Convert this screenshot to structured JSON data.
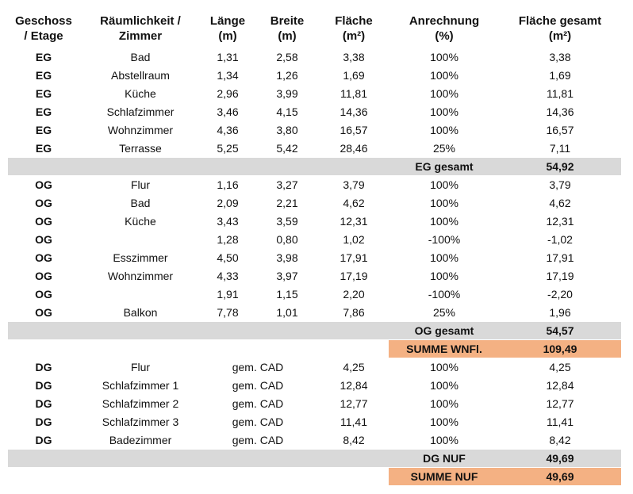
{
  "header": [
    [
      "Geschoss",
      "/ Etage"
    ],
    [
      "Räumlichkeit /",
      "Zimmer"
    ],
    [
      "Länge",
      "(m)"
    ],
    [
      "Breite",
      "(m)"
    ],
    [
      "Fläche",
      "(m²)"
    ],
    [
      "Anrechnung",
      "(%)"
    ],
    [
      "Fläche gesamt",
      "(m²)"
    ]
  ],
  "sections": [
    {
      "rows": [
        {
          "geschoss": "EG",
          "raum": "Bad",
          "laenge": "1,31",
          "breite": "2,58",
          "flaeche": "3,38",
          "anrechnung": "100%",
          "gesamt": "3,38"
        },
        {
          "geschoss": "EG",
          "raum": "Abstellraum",
          "laenge": "1,34",
          "breite": "1,26",
          "flaeche": "1,69",
          "anrechnung": "100%",
          "gesamt": "1,69"
        },
        {
          "geschoss": "EG",
          "raum": "Küche",
          "laenge": "2,96",
          "breite": "3,99",
          "flaeche": "11,81",
          "anrechnung": "100%",
          "gesamt": "11,81"
        },
        {
          "geschoss": "EG",
          "raum": "Schlafzimmer",
          "laenge": "3,46",
          "breite": "4,15",
          "flaeche": "14,36",
          "anrechnung": "100%",
          "gesamt": "14,36"
        },
        {
          "geschoss": "EG",
          "raum": "Wohnzimmer",
          "laenge": "4,36",
          "breite": "3,80",
          "flaeche": "16,57",
          "anrechnung": "100%",
          "gesamt": "16,57"
        },
        {
          "geschoss": "EG",
          "raum": "Terrasse",
          "laenge": "5,25",
          "breite": "5,42",
          "flaeche": "28,46",
          "anrechnung": "25%",
          "gesamt": "7,11"
        }
      ],
      "subtotal": {
        "label": "EG gesamt",
        "value": "54,92"
      }
    },
    {
      "rows": [
        {
          "geschoss": "OG",
          "raum": "Flur",
          "laenge": "1,16",
          "breite": "3,27",
          "flaeche": "3,79",
          "anrechnung": "100%",
          "gesamt": "3,79"
        },
        {
          "geschoss": "OG",
          "raum": "Bad",
          "laenge": "2,09",
          "breite": "2,21",
          "flaeche": "4,62",
          "anrechnung": "100%",
          "gesamt": "4,62"
        },
        {
          "geschoss": "OG",
          "raum": "Küche",
          "laenge": "3,43",
          "breite": "3,59",
          "flaeche": "12,31",
          "anrechnung": "100%",
          "gesamt": "12,31"
        },
        {
          "geschoss": "OG",
          "laenge": "1,28",
          "breite": "0,80",
          "flaeche": "1,02",
          "anrechnung": "-100%",
          "gesamt": "-1,02"
        },
        {
          "geschoss": "OG",
          "raum": "Esszimmer",
          "laenge": "4,50",
          "breite": "3,98",
          "flaeche": "17,91",
          "anrechnung": "100%",
          "gesamt": "17,91"
        },
        {
          "geschoss": "OG",
          "raum": "Wohnzimmer",
          "laenge": "4,33",
          "breite": "3,97",
          "flaeche": "17,19",
          "anrechnung": "100%",
          "gesamt": "17,19"
        },
        {
          "geschoss": "OG",
          "laenge": "1,91",
          "breite": "1,15",
          "flaeche": "2,20",
          "anrechnung": "-100%",
          "gesamt": "-2,20"
        },
        {
          "geschoss": "OG",
          "raum": "Balkon",
          "laenge": "7,78",
          "breite": "1,01",
          "flaeche": "7,86",
          "anrechnung": "25%",
          "gesamt": "1,96"
        }
      ],
      "subtotal": {
        "label": "OG gesamt",
        "value": "54,57"
      },
      "summe": {
        "label": "SUMME WNFl.",
        "value": "109,49"
      }
    },
    {
      "rows": [
        {
          "geschoss": "DG",
          "raum": "Flur",
          "masse": "gem. CAD",
          "flaeche": "4,25",
          "anrechnung": "100%",
          "gesamt": "4,25"
        },
        {
          "geschoss": "DG",
          "raum": "Schlafzimmer 1",
          "masse": "gem. CAD",
          "flaeche": "12,84",
          "anrechnung": "100%",
          "gesamt": "12,84"
        },
        {
          "geschoss": "DG",
          "raum": "Schlafzimmer 2",
          "masse": "gem. CAD",
          "flaeche": "12,77",
          "anrechnung": "100%",
          "gesamt": "12,77"
        },
        {
          "geschoss": "DG",
          "raum": "Schlafzimmer 3",
          "masse": "gem. CAD",
          "flaeche": "11,41",
          "anrechnung": "100%",
          "gesamt": "11,41"
        },
        {
          "geschoss": "DG",
          "raum": "Badezimmer",
          "masse": "gem. CAD",
          "flaeche": "8,42",
          "anrechnung": "100%",
          "gesamt": "8,42"
        }
      ],
      "subtotal": {
        "label": "DG NUF",
        "value": "49,69"
      },
      "summe": {
        "label": "SUMME NUF",
        "value": "49,69"
      }
    }
  ]
}
